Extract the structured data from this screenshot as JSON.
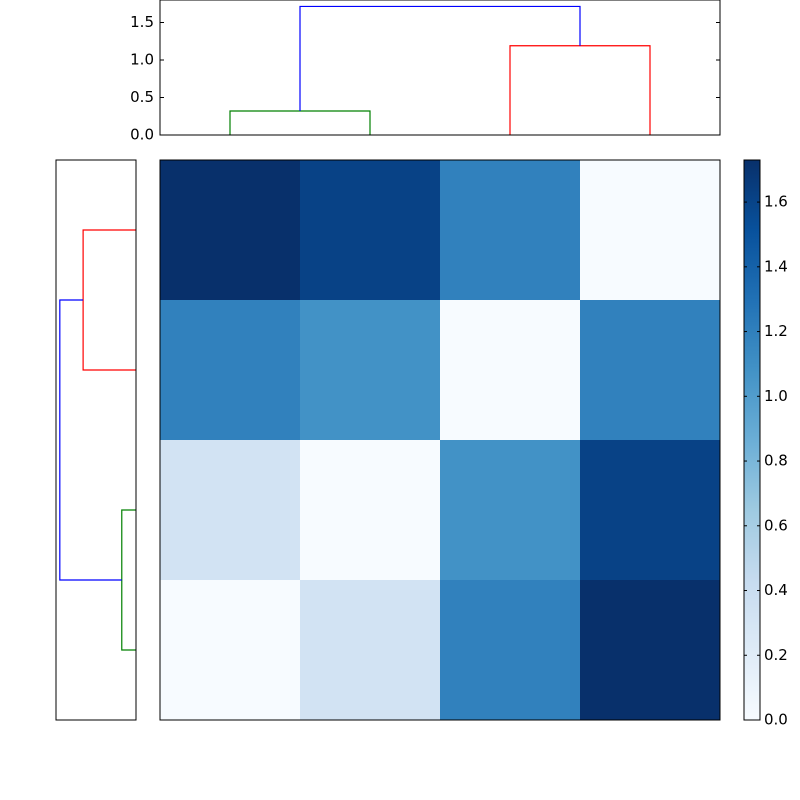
{
  "chart_data": [
    {
      "type": "dendrogram",
      "orientation": "top",
      "xlim": [
        0,
        40
      ],
      "ylim": [
        0,
        1.8
      ],
      "yticks": [
        {
          "value": 0,
          "label": "0.0"
        },
        {
          "value": 0.5,
          "label": "0.5"
        },
        {
          "value": 1,
          "label": "1.0"
        },
        {
          "value": 1.5,
          "label": "1.5"
        }
      ],
      "links": [
        {
          "color": "#008000",
          "x": [
            5,
            5,
            15,
            15
          ],
          "y": [
            0,
            0.32,
            0.32,
            0
          ]
        },
        {
          "color": "#ff0000",
          "x": [
            25,
            25,
            35,
            35
          ],
          "y": [
            0,
            1.19,
            1.19,
            0
          ]
        },
        {
          "color": "#0000ff",
          "x": [
            10,
            10,
            30,
            30
          ],
          "y": [
            0.32,
            1.714,
            1.714,
            1.19
          ]
        }
      ]
    },
    {
      "type": "dendrogram",
      "orientation": "left",
      "xlim": [
        1.8,
        0
      ],
      "ylim": [
        0,
        40
      ],
      "links": [
        {
          "color": "#008000",
          "x": [
            0,
            0.32,
            0.32,
            0
          ],
          "y": [
            5,
            5,
            15,
            15
          ]
        },
        {
          "color": "#ff0000",
          "x": [
            0,
            1.19,
            1.19,
            0
          ],
          "y": [
            25,
            25,
            35,
            35
          ]
        },
        {
          "color": "#0000ff",
          "x": [
            0.32,
            1.714,
            1.714,
            1.19
          ],
          "y": [
            10,
            10,
            30,
            30
          ]
        }
      ]
    },
    {
      "type": "heatmap",
      "values": [
        [
          1.73,
          1.61,
          1.19,
          0
        ],
        [
          1.19,
          1.08,
          0,
          1.19
        ],
        [
          0.32,
          0,
          1.08,
          1.61
        ],
        [
          0,
          0.32,
          1.19,
          1.73
        ]
      ],
      "colormap": [
        "#f7fbff",
        "#deebf7",
        "#c6dbef",
        "#9ecae1",
        "#6baed6",
        "#4292c6",
        "#2171b5",
        "#08519c",
        "#08306b"
      ],
      "clim": [
        0,
        1.73
      ],
      "cticks": [
        {
          "value": 0,
          "label": "0.0"
        },
        {
          "value": 0.2,
          "label": "0.2"
        },
        {
          "value": 0.4,
          "label": "0.4"
        },
        {
          "value": 0.6,
          "label": "0.6"
        },
        {
          "value": 0.8,
          "label": "0.8"
        },
        {
          "value": 1,
          "label": "1.0"
        },
        {
          "value": 1.2,
          "label": "1.2"
        },
        {
          "value": 1.4,
          "label": "1.4"
        },
        {
          "value": 1.6,
          "label": "1.6"
        }
      ]
    }
  ]
}
